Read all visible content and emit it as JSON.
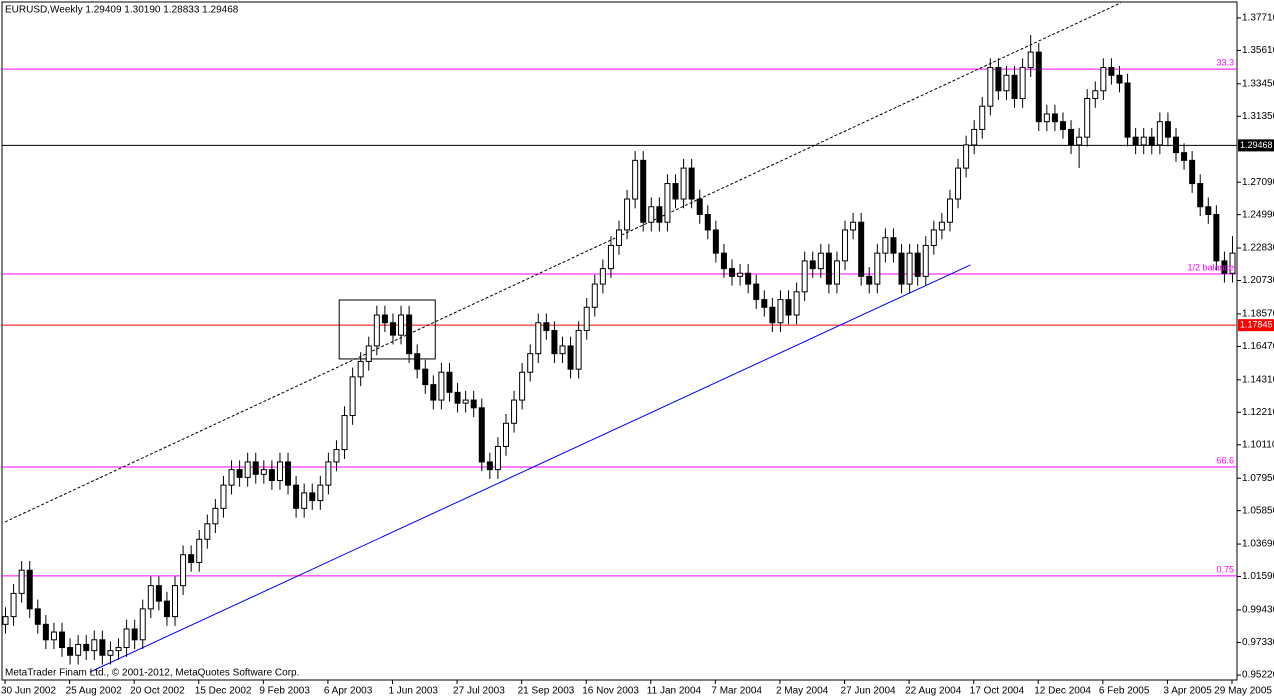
{
  "chart_data": {
    "type": "candlestick",
    "title": "EURUSD,Weekly  1.29409 1.30190 1.28833 1.29468",
    "footer": "MetaTrader Finam Ltd., © 2001-2012, MetaQuotes Software Corp.",
    "categories": [
      "30 Jun 2002",
      null,
      null,
      null,
      null,
      null,
      null,
      null,
      "25 Aug 2002",
      null,
      null,
      null,
      null,
      null,
      null,
      null,
      "20 Oct 2002",
      null,
      null,
      null,
      null,
      null,
      null,
      null,
      "15 Dec 2002",
      null,
      null,
      null,
      null,
      null,
      null,
      null,
      "9 Feb 2003",
      null,
      null,
      null,
      null,
      null,
      null,
      null,
      "6 Apr 2003",
      null,
      null,
      null,
      null,
      null,
      null,
      null,
      "1 Jun 2003",
      null,
      null,
      null,
      null,
      null,
      null,
      null,
      "27 Jul 2003",
      null,
      null,
      null,
      null,
      null,
      null,
      null,
      "21 Sep 2003",
      null,
      null,
      null,
      null,
      null,
      null,
      null,
      "16 Nov 2003",
      null,
      null,
      null,
      null,
      null,
      null,
      null,
      "11 Jan 2004",
      null,
      null,
      null,
      null,
      null,
      null,
      null,
      "7 Mar 2004",
      null,
      null,
      null,
      null,
      null,
      null,
      null,
      "2 May 2004",
      null,
      null,
      null,
      null,
      null,
      null,
      null,
      "27 Jun 2004",
      null,
      null,
      null,
      null,
      null,
      null,
      null,
      "22 Aug 2004",
      null,
      null,
      null,
      null,
      null,
      null,
      null,
      "17 Oct 2004",
      null,
      null,
      null,
      null,
      null,
      null,
      null,
      "12 Dec 2004",
      null,
      null,
      null,
      null,
      null,
      null,
      null,
      "6 Feb 2005",
      null,
      null,
      null,
      null,
      null,
      null,
      null,
      "3 Apr 2005",
      null,
      null,
      null,
      null,
      null,
      null,
      null,
      "29 May 2005"
    ],
    "ohlc": [
      [
        0.985,
        0.996,
        0.979,
        0.99
      ],
      [
        0.99,
        1.011,
        0.984,
        1.005
      ],
      [
        1.005,
        1.026,
        0.999,
        1.02
      ],
      [
        1.02,
        1.026,
        0.989,
        0.995
      ],
      [
        0.995,
        1.001,
        0.979,
        0.985
      ],
      [
        0.985,
        0.991,
        0.969,
        0.975
      ],
      [
        0.975,
        0.986,
        0.969,
        0.98
      ],
      [
        0.98,
        0.986,
        0.964,
        0.97
      ],
      [
        0.97,
        0.976,
        0.959,
        0.965
      ],
      [
        0.965,
        0.978,
        0.959,
        0.972
      ],
      [
        0.972,
        0.978,
        0.962,
        0.968
      ],
      [
        0.968,
        0.981,
        0.962,
        0.975
      ],
      [
        0.975,
        0.981,
        0.959,
        0.965
      ],
      [
        0.965,
        0.974,
        0.959,
        0.968
      ],
      [
        0.968,
        0.976,
        0.962,
        0.97
      ],
      [
        0.97,
        0.988,
        0.964,
        0.982
      ],
      [
        0.982,
        0.988,
        0.969,
        0.975
      ],
      [
        0.975,
        1.001,
        0.969,
        0.995
      ],
      [
        0.995,
        1.016,
        0.989,
        1.01
      ],
      [
        1.01,
        1.016,
        0.994,
        1.0
      ],
      [
        1.0,
        1.006,
        0.984,
        0.99
      ],
      [
        0.99,
        1.016,
        0.984,
        1.01
      ],
      [
        1.01,
        1.036,
        1.004,
        1.03
      ],
      [
        1.03,
        1.036,
        1.019,
        1.025
      ],
      [
        1.025,
        1.046,
        1.019,
        1.04
      ],
      [
        1.04,
        1.056,
        1.034,
        1.05
      ],
      [
        1.05,
        1.066,
        1.044,
        1.06
      ],
      [
        1.06,
        1.081,
        1.054,
        1.075
      ],
      [
        1.075,
        1.091,
        1.069,
        1.085
      ],
      [
        1.085,
        1.091,
        1.074,
        1.08
      ],
      [
        1.08,
        1.096,
        1.074,
        1.09
      ],
      [
        1.09,
        1.096,
        1.076,
        1.082
      ],
      [
        1.082,
        1.091,
        1.076,
        1.085
      ],
      [
        1.085,
        1.091,
        1.072,
        1.078
      ],
      [
        1.078,
        1.096,
        1.072,
        1.09
      ],
      [
        1.09,
        1.096,
        1.069,
        1.075
      ],
      [
        1.075,
        1.081,
        1.054,
        1.06
      ],
      [
        1.06,
        1.076,
        1.054,
        1.07
      ],
      [
        1.07,
        1.076,
        1.059,
        1.065
      ],
      [
        1.065,
        1.081,
        1.059,
        1.075
      ],
      [
        1.075,
        1.096,
        1.069,
        1.09
      ],
      [
        1.09,
        1.104,
        1.084,
        1.098
      ],
      [
        1.098,
        1.126,
        1.092,
        1.12
      ],
      [
        1.12,
        1.151,
        1.114,
        1.145
      ],
      [
        1.145,
        1.161,
        1.139,
        1.155
      ],
      [
        1.155,
        1.171,
        1.149,
        1.165
      ],
      [
        1.165,
        1.191,
        1.159,
        1.185
      ],
      [
        1.185,
        1.191,
        1.174,
        1.18
      ],
      [
        1.18,
        1.186,
        1.166,
        1.172
      ],
      [
        1.172,
        1.191,
        1.166,
        1.185
      ],
      [
        1.185,
        1.191,
        1.154,
        1.16
      ],
      [
        1.16,
        1.166,
        1.144,
        1.15
      ],
      [
        1.15,
        1.156,
        1.134,
        1.14
      ],
      [
        1.14,
        1.146,
        1.124,
        1.13
      ],
      [
        1.13,
        1.154,
        1.124,
        1.148
      ],
      [
        1.148,
        1.154,
        1.129,
        1.135
      ],
      [
        1.135,
        1.141,
        1.122,
        1.128
      ],
      [
        1.128,
        1.136,
        1.122,
        1.13
      ],
      [
        1.13,
        1.136,
        1.119,
        1.125
      ],
      [
        1.125,
        1.131,
        1.084,
        1.09
      ],
      [
        1.09,
        1.096,
        1.079,
        1.085
      ],
      [
        1.085,
        1.106,
        1.079,
        1.1
      ],
      [
        1.1,
        1.121,
        1.094,
        1.115
      ],
      [
        1.115,
        1.136,
        1.109,
        1.13
      ],
      [
        1.13,
        1.154,
        1.124,
        1.148
      ],
      [
        1.148,
        1.166,
        1.142,
        1.16
      ],
      [
        1.16,
        1.186,
        1.154,
        1.18
      ],
      [
        1.18,
        1.186,
        1.169,
        1.175
      ],
      [
        1.175,
        1.181,
        1.154,
        1.16
      ],
      [
        1.16,
        1.171,
        1.154,
        1.165
      ],
      [
        1.165,
        1.171,
        1.144,
        1.15
      ],
      [
        1.15,
        1.181,
        1.144,
        1.175
      ],
      [
        1.175,
        1.196,
        1.169,
        1.19
      ],
      [
        1.19,
        1.211,
        1.184,
        1.205
      ],
      [
        1.205,
        1.221,
        1.199,
        1.215
      ],
      [
        1.215,
        1.236,
        1.209,
        1.23
      ],
      [
        1.23,
        1.246,
        1.224,
        1.24
      ],
      [
        1.24,
        1.266,
        1.234,
        1.26
      ],
      [
        1.26,
        1.291,
        1.254,
        1.285
      ],
      [
        1.285,
        1.291,
        1.239,
        1.245
      ],
      [
        1.245,
        1.261,
        1.239,
        1.255
      ],
      [
        1.255,
        1.261,
        1.239,
        1.245
      ],
      [
        1.245,
        1.276,
        1.239,
        1.27
      ],
      [
        1.27,
        1.276,
        1.254,
        1.26
      ],
      [
        1.26,
        1.286,
        1.254,
        1.28
      ],
      [
        1.28,
        1.286,
        1.254,
        1.26
      ],
      [
        1.26,
        1.266,
        1.244,
        1.25
      ],
      [
        1.25,
        1.256,
        1.234,
        1.24
      ],
      [
        1.24,
        1.246,
        1.219,
        1.225
      ],
      [
        1.225,
        1.231,
        1.209,
        1.215
      ],
      [
        1.215,
        1.221,
        1.204,
        1.21
      ],
      [
        1.21,
        1.218,
        1.204,
        1.212
      ],
      [
        1.212,
        1.218,
        1.199,
        1.205
      ],
      [
        1.205,
        1.211,
        1.189,
        1.195
      ],
      [
        1.195,
        1.201,
        1.184,
        1.19
      ],
      [
        1.19,
        1.196,
        1.174,
        1.18
      ],
      [
        1.18,
        1.201,
        1.174,
        1.195
      ],
      [
        1.195,
        1.201,
        1.179,
        1.185
      ],
      [
        1.185,
        1.206,
        1.179,
        1.2
      ],
      [
        1.2,
        1.226,
        1.194,
        1.22
      ],
      [
        1.22,
        1.226,
        1.209,
        1.215
      ],
      [
        1.215,
        1.231,
        1.209,
        1.225
      ],
      [
        1.225,
        1.231,
        1.199,
        1.205
      ],
      [
        1.205,
        1.226,
        1.199,
        1.22
      ],
      [
        1.22,
        1.246,
        1.214,
        1.24
      ],
      [
        1.24,
        1.251,
        1.234,
        1.245
      ],
      [
        1.245,
        1.251,
        1.204,
        1.21
      ],
      [
        1.21,
        1.216,
        1.199,
        1.205
      ],
      [
        1.205,
        1.231,
        1.199,
        1.225
      ],
      [
        1.225,
        1.241,
        1.219,
        1.235
      ],
      [
        1.235,
        1.241,
        1.219,
        1.225
      ],
      [
        1.225,
        1.231,
        1.199,
        1.205
      ],
      [
        1.205,
        1.231,
        1.199,
        1.225
      ],
      [
        1.225,
        1.231,
        1.204,
        1.21
      ],
      [
        1.21,
        1.236,
        1.204,
        1.23
      ],
      [
        1.23,
        1.246,
        1.224,
        1.24
      ],
      [
        1.24,
        1.251,
        1.234,
        1.245
      ],
      [
        1.245,
        1.266,
        1.239,
        1.26
      ],
      [
        1.26,
        1.286,
        1.254,
        1.28
      ],
      [
        1.28,
        1.301,
        1.274,
        1.295
      ],
      [
        1.295,
        1.311,
        1.289,
        1.305
      ],
      [
        1.305,
        1.326,
        1.299,
        1.32
      ],
      [
        1.32,
        1.351,
        1.314,
        1.345
      ],
      [
        1.345,
        1.351,
        1.324,
        1.33
      ],
      [
        1.33,
        1.346,
        1.324,
        1.34
      ],
      [
        1.34,
        1.346,
        1.319,
        1.325
      ],
      [
        1.325,
        1.351,
        1.319,
        1.345
      ],
      [
        1.345,
        1.366,
        1.339,
        1.355
      ],
      [
        1.355,
        1.361,
        1.304,
        1.31
      ],
      [
        1.31,
        1.321,
        1.304,
        1.315
      ],
      [
        1.315,
        1.321,
        1.304,
        1.31
      ],
      [
        1.31,
        1.316,
        1.299,
        1.305
      ],
      [
        1.305,
        1.311,
        1.289,
        1.295
      ],
      [
        1.295,
        1.306,
        1.28,
        1.3
      ],
      [
        1.3,
        1.331,
        1.294,
        1.325
      ],
      [
        1.325,
        1.336,
        1.319,
        1.33
      ],
      [
        1.33,
        1.351,
        1.324,
        1.345
      ],
      [
        1.345,
        1.351,
        1.334,
        1.34
      ],
      [
        1.34,
        1.346,
        1.329,
        1.335
      ],
      [
        1.335,
        1.341,
        1.294,
        1.3
      ],
      [
        1.3,
        1.306,
        1.289,
        1.295
      ],
      [
        1.295,
        1.306,
        1.289,
        1.3
      ],
      [
        1.3,
        1.306,
        1.289,
        1.295
      ],
      [
        1.295,
        1.316,
        1.289,
        1.31
      ],
      [
        1.31,
        1.316,
        1.294,
        1.3
      ],
      [
        1.3,
        1.306,
        1.284,
        1.29
      ],
      [
        1.29,
        1.296,
        1.279,
        1.285
      ],
      [
        1.285,
        1.291,
        1.264,
        1.27
      ],
      [
        1.27,
        1.276,
        1.249,
        1.255
      ],
      [
        1.255,
        1.261,
        1.244,
        1.25
      ],
      [
        1.25,
        1.256,
        1.214,
        1.22
      ],
      [
        1.22,
        1.226,
        1.206,
        1.212
      ],
      [
        1.212,
        1.236,
        1.206,
        1.225
      ]
    ],
    "bull_color": "#ffffff",
    "bear_color": "#000000",
    "ylim": [
      0.949,
      1.3874
    ],
    "yticks": [
      {
        "value": 1.3771,
        "label": "1.37710"
      },
      {
        "value": 1.3561,
        "label": "1.35610"
      },
      {
        "value": 1.3345,
        "label": "1.33450"
      },
      {
        "value": 1.3135,
        "label": "1.31350"
      },
      {
        "value": 1.2709,
        "label": "1.27090"
      },
      {
        "value": 1.2499,
        "label": "1.24990"
      },
      {
        "value": 1.2283,
        "label": "1.22830"
      },
      {
        "value": 1.2073,
        "label": "1.20730"
      },
      {
        "value": 1.1857,
        "label": "1.18570"
      },
      {
        "value": 1.1647,
        "label": "1.16470"
      },
      {
        "value": 1.1431,
        "label": "1.14310"
      },
      {
        "value": 1.1221,
        "label": "1.12210"
      },
      {
        "value": 1.1011,
        "label": "1.10110"
      },
      {
        "value": 1.0795,
        "label": "1.07950"
      },
      {
        "value": 1.0585,
        "label": "1.05850"
      },
      {
        "value": 1.0369,
        "label": "1.03690"
      },
      {
        "value": 1.0159,
        "label": "1.01590"
      },
      {
        "value": 0.9943,
        "label": "0.99430"
      },
      {
        "value": 0.9733,
        "label": "0.97330"
      },
      {
        "value": 0.9522,
        "label": "0.95220"
      }
    ],
    "levels": [
      {
        "value": 1.344,
        "label": "33.3"
      },
      {
        "value": 1.2115,
        "label": "1/2 balance"
      },
      {
        "value": 1.0867,
        "label": "66.6"
      },
      {
        "value": 1.0163,
        "label": "0.75"
      }
    ],
    "level_color": "#ff00ff",
    "price_lines": [
      {
        "value": 1.29468,
        "color": "#000000"
      },
      {
        "value": 1.17845,
        "color": "#ff0000"
      }
    ],
    "trendlines": [
      {
        "x": [
          0,
          138.2
        ],
        "y": [
          1.0512,
          1.3868
        ],
        "color": "#000000",
        "style": "dotted"
      },
      {
        "x": [
          10.5,
          119.6
        ],
        "y": [
          0.9541,
          1.2174
        ],
        "color": "#0000ff",
        "style": "solid"
      }
    ],
    "rectangle": {
      "x": [
        41.4,
        53.3
      ],
      "y": [
        1.1566,
        1.1947
      ]
    }
  }
}
